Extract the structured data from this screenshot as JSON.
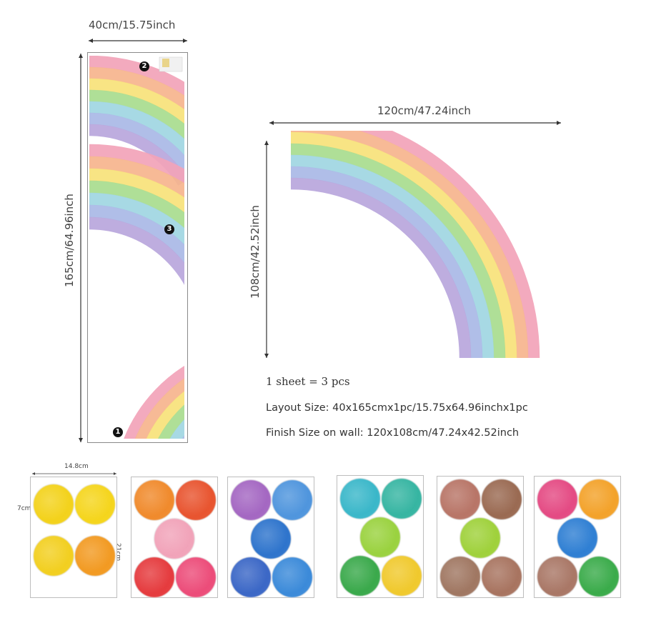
{
  "layout_sheet": {
    "width_label": "40cm/15.75inch",
    "height_label": "165cm/64.96inch",
    "piece_numbers": [
      "1",
      "2",
      "3"
    ]
  },
  "assembled": {
    "width_label": "120cm/47.24inch",
    "height_label": "108cm/42.52inch"
  },
  "specs": {
    "line1": "1 sheet = 3 pcs",
    "line2": "Layout Size: 40x165cmx1pc/15.75x64.96inchx1pc",
    "line3": "Finish Size on wall: 120x108cm/47.24x42.52inch"
  },
  "dot_sheet_dims": {
    "width_label": "14.8cm",
    "height_label": "21cm",
    "dot_height_label": "7cm",
    "dot_width_label": "7cm"
  },
  "dot_cards": [
    {
      "dots": [
        "#f3d21b",
        "#f5d51c",
        "#f2cf20",
        "#f29a22"
      ]
    },
    {
      "dots": [
        "#f08a2c",
        "#e8542f",
        "#f1a3b9",
        "#e53b3e",
        "#ec4c79"
      ]
    },
    {
      "dots": [
        "#a467c2",
        "#4f95dd",
        "#2e74cc",
        "#3b67c6",
        "#3b8ad9"
      ]
    },
    {
      "dots": [
        "#3ab7c9",
        "#36b5a2",
        "#9ad23f",
        "#3aa94b",
        "#f0c92d"
      ]
    },
    {
      "dots": [
        "#b87567",
        "#9a6a52",
        "#9fd13b",
        "#a07762",
        "#a87460"
      ]
    },
    {
      "dots": [
        "#e44a83",
        "#f3a22a",
        "#2f7fd3",
        "#a97766",
        "#3aab4a"
      ]
    }
  ],
  "rainbow_colors": [
    "#f2a3b8",
    "#f6b48d",
    "#f7e27a",
    "#a8dc8e",
    "#9fd6e2",
    "#a9b8e6",
    "#b9a6dc"
  ]
}
